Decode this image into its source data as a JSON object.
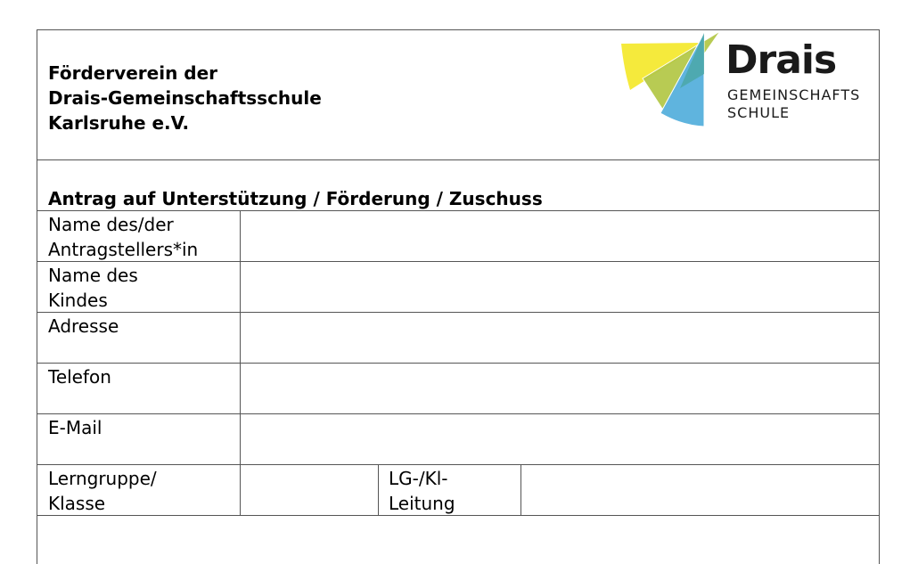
{
  "header": {
    "org_lines": [
      "Förderverein der",
      "Drais-Gemeinschaftsschule",
      "Karlsruhe e.V."
    ],
    "logo": {
      "brand": "Drais",
      "line1": "GEMEINSCHAFTS",
      "line2": "SCHULE",
      "colors": {
        "yellow": "#f5ea3c",
        "green": "#b5c94a",
        "blue": "#5fb4de",
        "teal": "#4aa6a4"
      }
    }
  },
  "form": {
    "title": "Antrag auf Unterstützung / Förderung / Zuschuss",
    "rows": [
      {
        "label": [
          "Name des/der",
          "Antragstellers*in"
        ],
        "value": ""
      },
      {
        "label": [
          "Name des",
          "Kindes"
        ],
        "value": ""
      },
      {
        "label": [
          "Adresse"
        ],
        "value": ""
      },
      {
        "label": [
          "Telefon"
        ],
        "value": ""
      },
      {
        "label": [
          "E-Mail"
        ],
        "value": ""
      }
    ],
    "class_row": {
      "label": [
        "Lerngruppe/",
        "Klasse"
      ],
      "value": "",
      "lead_label": [
        "LG-/Kl-",
        "Leitung"
      ],
      "lead_value": ""
    }
  }
}
